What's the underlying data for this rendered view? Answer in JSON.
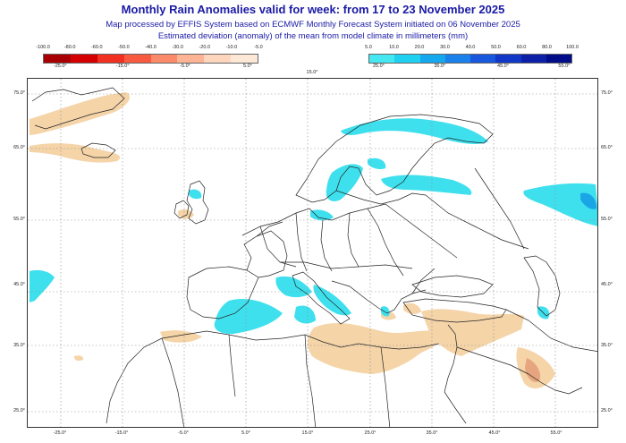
{
  "header": {
    "title": "Monthly Rain Anomalies valid for week: from 17 to 23 November 2025",
    "line1": "Map processed by EFFIS System based on ECMWF Monthly Forecast System initiated on 06 November 2025",
    "line2": "Estimated deviation (anomaly) of the mean from model climate in millimeters (mm)"
  },
  "legend_negative": {
    "top_labels": [
      "-100.0",
      "-80.0",
      "-60.0",
      "-50.0",
      "-40.0",
      "-30.0",
      "-20.0",
      "-10.0",
      "-5.0"
    ],
    "bottom_labels": [
      "-25.0°",
      "-15.0°",
      "-5.0°",
      "5.0°"
    ],
    "colors": [
      "#a80000",
      "#d40000",
      "#f03020",
      "#f85a40",
      "#fb8a6a",
      "#fcb495",
      "#fdd6bd",
      "#fde8d6"
    ]
  },
  "legend_positive": {
    "top_labels": [
      "5.0",
      "10.0",
      "20.0",
      "30.0",
      "40.0",
      "50.0",
      "60.0",
      "80.0",
      "100.0"
    ],
    "bottom_labels": [
      "25.0°",
      "35.0°",
      "45.0°",
      "55.0°"
    ],
    "colors": [
      "#45e8f0",
      "#20d0f0",
      "#16a8ee",
      "#1a80ea",
      "#1858dc",
      "#1238c8",
      "#0c20a8",
      "#000c88"
    ]
  },
  "map": {
    "lat_labels": [
      "75.0°",
      "65.0°",
      "55.0°",
      "45.0°",
      "35.0°",
      "25.0°"
    ],
    "lon_labels": [
      "-25.0°",
      "-15.0°",
      "-5.0°",
      "5.0°",
      "15.0°",
      "25.0°",
      "35.0°",
      "45.0°",
      "55.0°"
    ],
    "extra_bottom_label": "15.0°",
    "colors": {
      "dry": "#f5d4a8",
      "dry_strong": "#e6a57e",
      "wet": "#3fe0ee",
      "wet_strong": "#1aa6e6",
      "land_line": "#222222",
      "grid": "#8a8a8a"
    }
  }
}
